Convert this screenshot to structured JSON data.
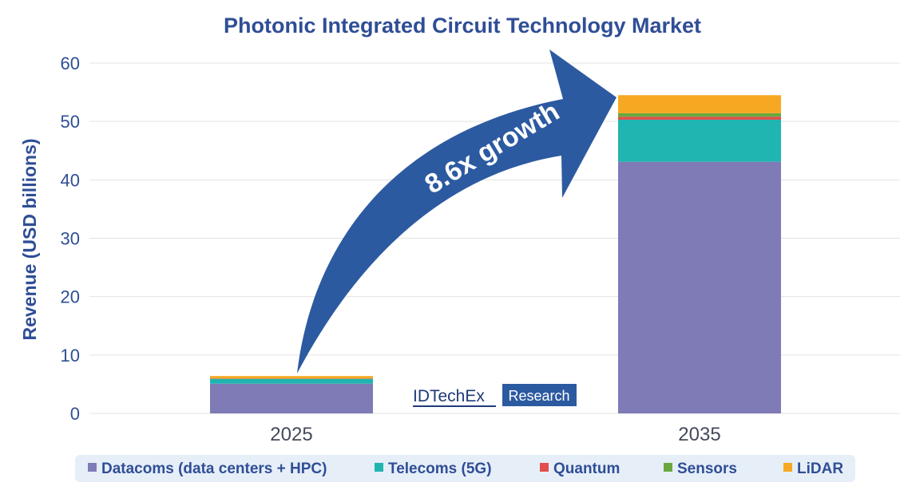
{
  "chart_data": {
    "type": "bar",
    "stacked": true,
    "title": "Photonic Integrated Circuit Technology Market",
    "ylabel": "Revenue (USD billions)",
    "xlabel": "",
    "ylim": [
      0,
      60
    ],
    "yticks": [
      "0",
      "10",
      "20",
      "30",
      "40",
      "50",
      "60"
    ],
    "grid": true,
    "categories": [
      "2025",
      "2035"
    ],
    "series": [
      {
        "name": "Datacoms (data centers + HPC)",
        "color": "#7f7bb6",
        "values": [
          5.1,
          43.1
        ]
      },
      {
        "name": "Telecoms (5G)",
        "color": "#20b5b0",
        "values": [
          0.8,
          7.2
        ]
      },
      {
        "name": "Quantum",
        "color": "#e24d4d",
        "values": [
          0.05,
          0.5
        ]
      },
      {
        "name": "Sensors",
        "color": "#6aa83f",
        "values": [
          0.05,
          0.6
        ]
      },
      {
        "name": "LiDAR",
        "color": "#f7a823",
        "values": [
          0.4,
          3.1
        ]
      }
    ],
    "legend_position": "bottom",
    "annotation": "8.6x growth"
  },
  "logo": {
    "left": "IDTechEx",
    "right": "Research"
  },
  "colors": {
    "accent": "#2f4e96",
    "arrow": "#2c5aa0",
    "legend_bg": "#e6eef8",
    "grid": "#e3e3e3"
  }
}
